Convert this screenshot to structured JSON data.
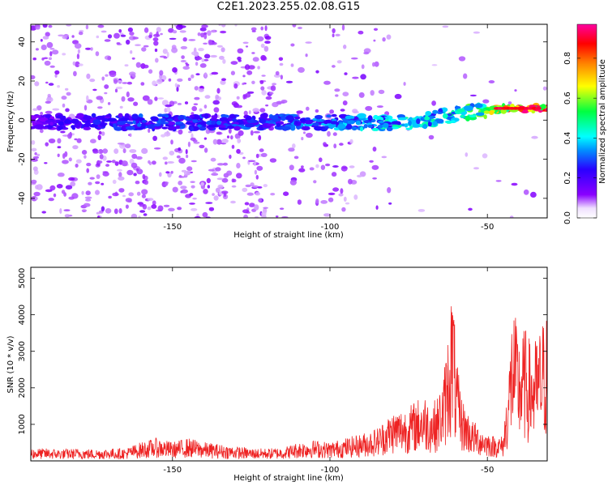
{
  "title": "C2E1.2023.255.02.08.G15",
  "chart_data": [
    {
      "type": "heatmap",
      "title": "C2E1.2023.255.02.08.G15",
      "xlabel": "Height of straight line (km)",
      "ylabel": "Frequency (Hz)",
      "xlim": [
        -195,
        -31
      ],
      "ylim": [
        -50,
        49
      ],
      "x_ticks": [
        -150,
        -100,
        -50
      ],
      "y_ticks": [
        -40,
        -20,
        0,
        20,
        40
      ],
      "grid": false,
      "colorbar": {
        "label": "Normalized spectral amplitude",
        "range": [
          0.0,
          0.97
        ],
        "ticks": [
          0.0,
          0.2,
          0.4,
          0.6,
          0.8
        ],
        "colormap": [
          "#ffffff",
          "#7a00ff",
          "#0000ff",
          "#00ffff",
          "#00ff00",
          "#ffff00",
          "#ff7f00",
          "#ff0000",
          "#ff00a0"
        ]
      },
      "ridge": {
        "x": [
          -195,
          -160,
          -120,
          -90,
          -80,
          -70,
          -60,
          -50,
          -45,
          -40,
          -32
        ],
        "frequency": [
          -1,
          -1,
          -1,
          -1,
          -2,
          0,
          3,
          5,
          6,
          6,
          6
        ],
        "amplitude": [
          0.2,
          0.3,
          0.3,
          0.4,
          0.45,
          0.45,
          0.5,
          0.6,
          0.85,
          0.9,
          0.95
        ]
      }
    },
    {
      "type": "line",
      "xlabel": "Height of straight line (km)",
      "ylabel": "SNR (10 * v/v)",
      "xlim": [
        -195,
        -31
      ],
      "ylim": [
        0,
        5300
      ],
      "x_ticks": [
        -150,
        -100,
        -50
      ],
      "y_ticks": [
        1000,
        2000,
        3000,
        4000,
        5000
      ],
      "color": "#ee2222",
      "series": [
        {
          "x": [
            -195,
            -190,
            -185,
            -180,
            -175,
            -170,
            -165,
            -160,
            -155,
            -150,
            -145,
            -140,
            -135,
            -130,
            -125,
            -120,
            -115,
            -110,
            -105,
            -100,
            -95,
            -90,
            -85,
            -80,
            -75,
            -72,
            -70,
            -68,
            -66,
            -64,
            -62,
            -61,
            -60,
            -58,
            -55,
            -52,
            -50,
            -48,
            -45,
            -43,
            -42,
            -40,
            -38,
            -36,
            -34,
            -32
          ],
          "values": [
            300,
            300,
            280,
            300,
            280,
            300,
            300,
            450,
            550,
            450,
            550,
            450,
            400,
            350,
            300,
            300,
            320,
            450,
            500,
            450,
            550,
            650,
            800,
            1200,
            1300,
            1500,
            1600,
            1400,
            1500,
            2000,
            3500,
            4500,
            2500,
            1500,
            1000,
            800,
            700,
            600,
            600,
            2500,
            3800,
            3000,
            3200,
            2800,
            3000,
            3500
          ]
        }
      ]
    }
  ]
}
